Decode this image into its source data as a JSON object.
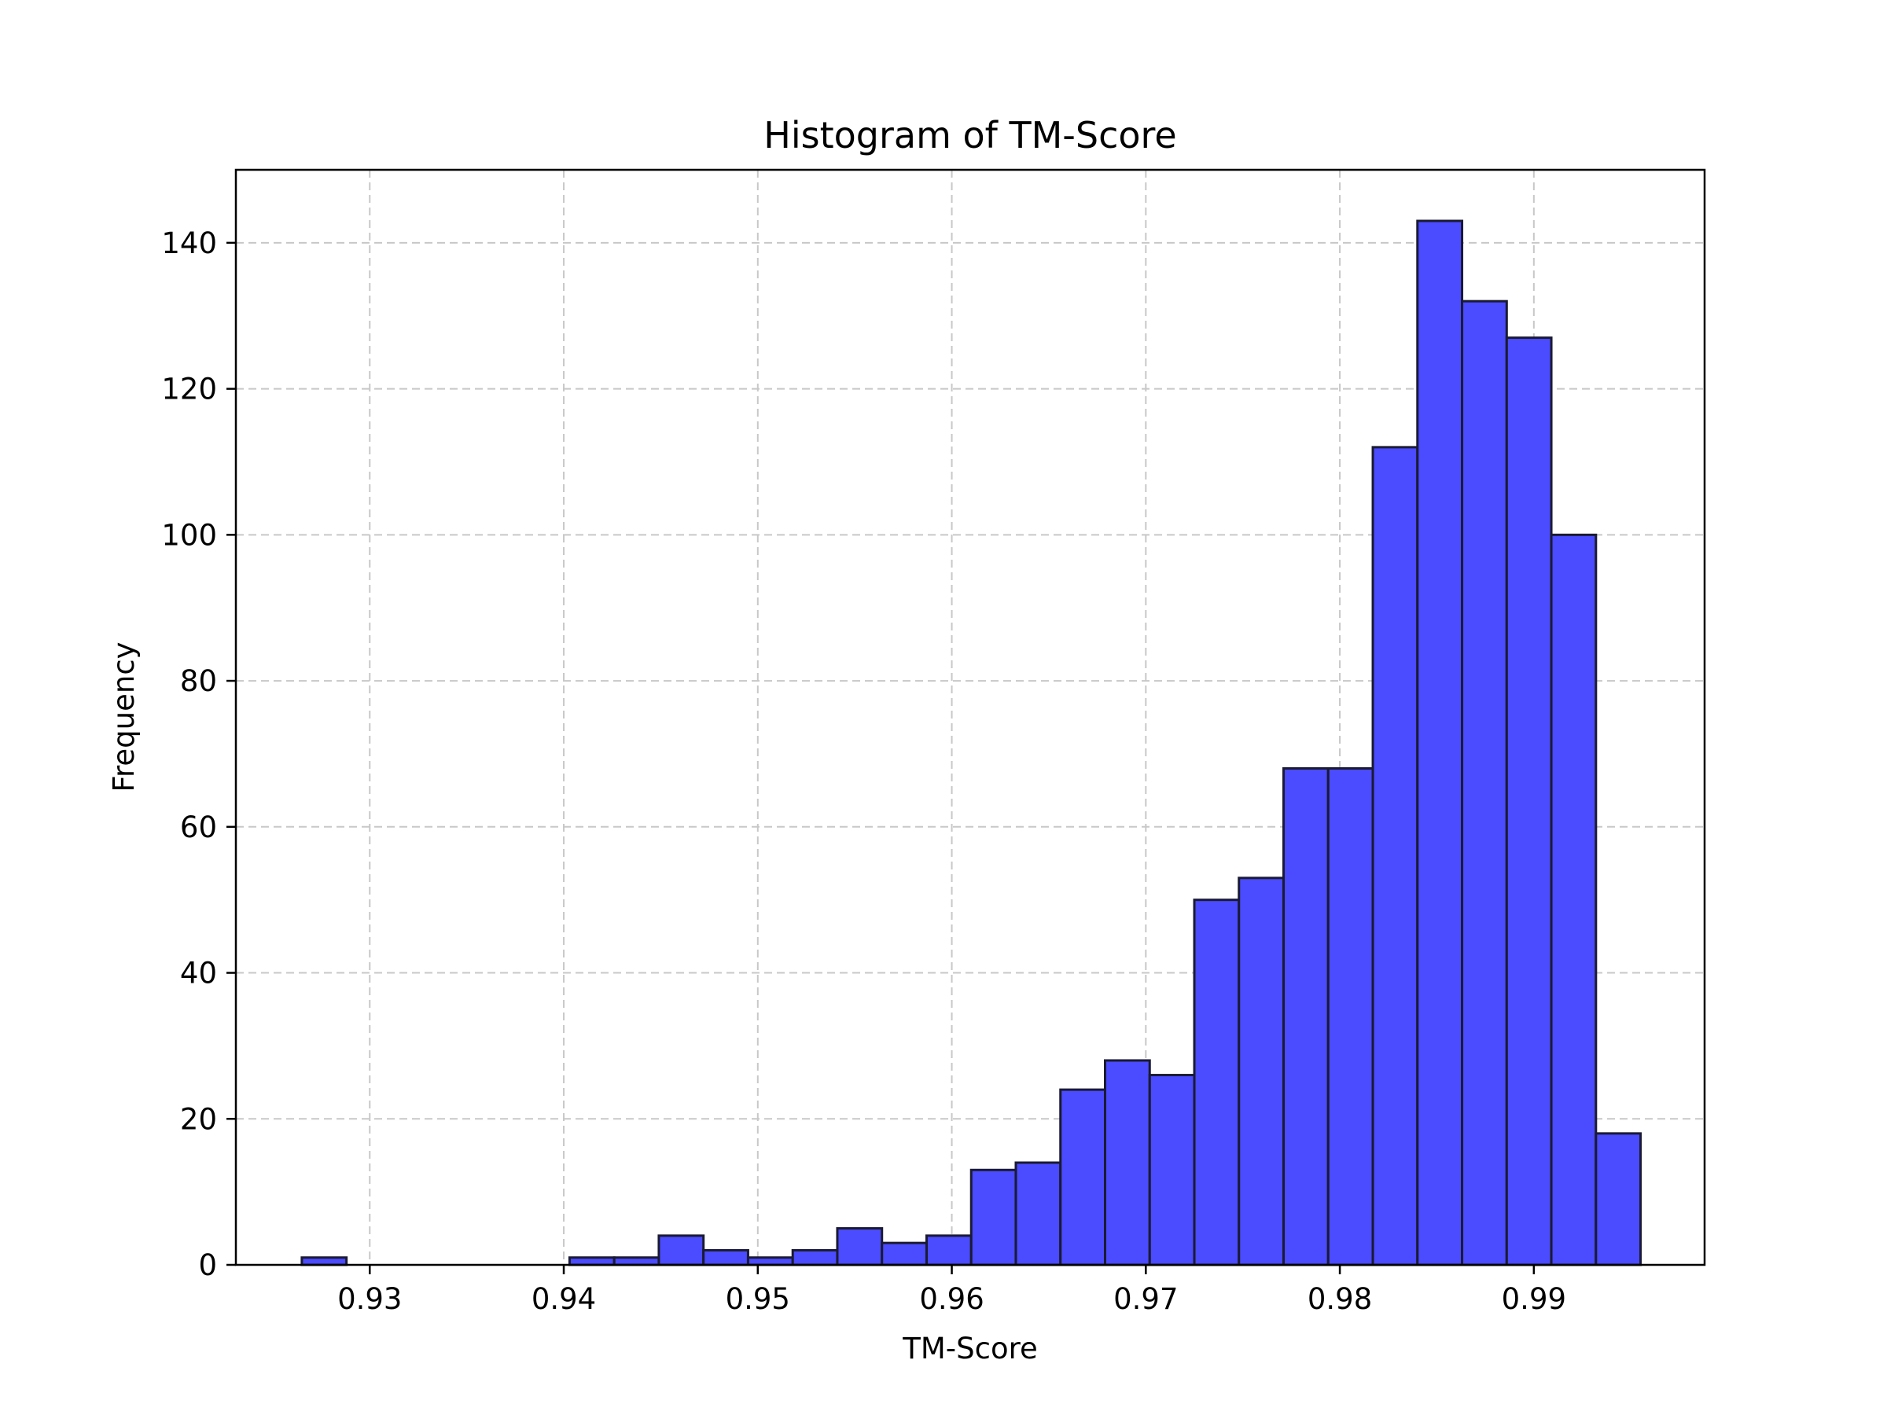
{
  "chart_data": {
    "type": "bar",
    "title": "Histogram of TM-Score",
    "xlabel": "TM-Score",
    "ylabel": "Frequency",
    "xlim": [
      0.9231,
      0.9988
    ],
    "ylim": [
      0,
      150
    ],
    "xticks": [
      0.93,
      0.94,
      0.95,
      0.96,
      0.97,
      0.98,
      0.99
    ],
    "xtick_labels": [
      "0.93",
      "0.94",
      "0.95",
      "0.96",
      "0.97",
      "0.98",
      "0.99"
    ],
    "yticks": [
      0,
      20,
      40,
      60,
      80,
      100,
      120,
      140
    ],
    "ytick_labels": [
      "0",
      "20",
      "40",
      "60",
      "80",
      "100",
      "120",
      "140"
    ],
    "grid": true,
    "bin_start": 0.9265,
    "bin_width": 0.0023,
    "values": [
      1,
      0,
      0,
      0,
      0,
      0,
      1,
      1,
      4,
      2,
      1,
      2,
      5,
      3,
      4,
      13,
      14,
      24,
      28,
      26,
      50,
      53,
      68,
      68,
      112,
      143,
      132,
      127,
      100,
      18
    ],
    "colors": {
      "bar_fill": "#4b4bff",
      "bar_edge": "#1a1a33",
      "grid": "#c8c8c8"
    }
  }
}
